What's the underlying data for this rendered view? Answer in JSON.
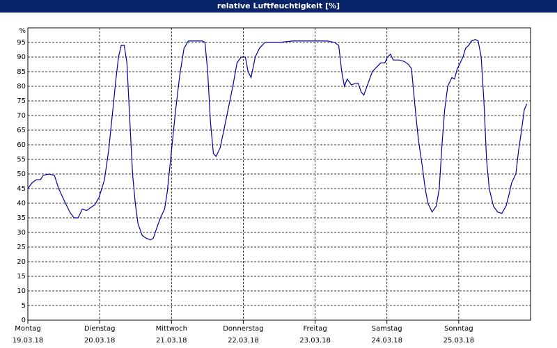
{
  "chart_data": {
    "type": "line",
    "title": "relative Luftfeuchtigkeit [%]",
    "y_unit": "%",
    "xlim": [
      0,
      168
    ],
    "xticks": [
      {
        "value": 0,
        "label": "Montag"
      },
      {
        "value": 24,
        "label": "Dienstag"
      },
      {
        "value": 48,
        "label": "Mittwoch"
      },
      {
        "value": 72,
        "label": "Donnerstag"
      },
      {
        "value": 96,
        "label": "Freitag"
      },
      {
        "value": 120,
        "label": "Samstag"
      },
      {
        "value": 144,
        "label": "Sonntag"
      }
    ],
    "x_dates": [
      "19.03.18",
      "20.03.18",
      "21.03.18",
      "22.03.18",
      "23.03.18",
      "24.03.18",
      "25.03.18"
    ],
    "ylim": [
      0,
      100
    ],
    "yticks": [
      0,
      5,
      10,
      15,
      20,
      25,
      30,
      35,
      40,
      45,
      50,
      55,
      60,
      65,
      70,
      75,
      80,
      85,
      90,
      95
    ],
    "grid": true,
    "series": [
      {
        "color": "#0000a0",
        "x": [
          0,
          1.4,
          2.8,
          4.2,
          5.1,
          7.0,
          8.9,
          10.3,
          12.1,
          14.0,
          15.4,
          16.8,
          18.2,
          19.6,
          21.0,
          22.4,
          23.8,
          25.6,
          27.0,
          28.4,
          29.4,
          30.3,
          31.2,
          32.2,
          33.1,
          34.0,
          35.0,
          35.9,
          36.8,
          38.2,
          39.6,
          41.0,
          41.9,
          42.9,
          44.3,
          45.7,
          46.6,
          48.0,
          49.4,
          50.8,
          52.2,
          53.6,
          55.0,
          56.4,
          58.3,
          59.2,
          60.1,
          61.0,
          62.0,
          62.9,
          64.3,
          65.7,
          67.1,
          68.5,
          69.9,
          71.3,
          72.7,
          73.6,
          74.6,
          76.0,
          77.4,
          79.2,
          80.6,
          83.9,
          88.5,
          93.2,
          97.9,
          100.2,
          102.5,
          103.9,
          104.9,
          105.8,
          106.7,
          108.1,
          109.5,
          110.4,
          111.4,
          112.3,
          113.7,
          115.1,
          116.5,
          117.9,
          119.3,
          120.2,
          121.2,
          122.1,
          124.0,
          125.8,
          127.2,
          128.2,
          129.5,
          130.5,
          131.9,
          132.8,
          133.7,
          135.1,
          136.5,
          137.5,
          138.4,
          139.3,
          140.3,
          141.7,
          142.6,
          143.5,
          144.5,
          145.4,
          146.3,
          147.3,
          148.2,
          149.6,
          150.5,
          151.5,
          152.4,
          153.3,
          154.2,
          155.6,
          157.0,
          158.4,
          159.8,
          160.8,
          161.7,
          163.1,
          164.0,
          165.0,
          165.9,
          166.8
        ],
        "values": [
          45,
          47,
          48,
          48,
          49.5,
          50,
          49.5,
          45,
          41,
          37,
          35,
          35,
          38,
          37.5,
          38.5,
          39.5,
          42,
          48,
          58,
          72,
          82,
          90,
          94,
          94,
          88,
          70,
          50,
          40,
          33,
          29,
          28,
          27.5,
          28,
          31,
          35,
          38,
          44,
          58,
          72,
          84,
          93,
          95.5,
          95.5,
          95.5,
          95.5,
          95,
          85,
          68,
          57,
          56,
          59,
          66,
          73,
          80,
          88,
          90,
          90,
          85,
          83,
          90,
          93,
          95,
          95,
          95,
          95.5,
          95.5,
          95.5,
          95.5,
          95,
          94,
          85,
          80,
          82.5,
          80.5,
          81,
          81,
          78,
          77,
          81,
          85,
          86.5,
          88,
          88,
          90,
          91,
          89,
          89,
          88.5,
          87.5,
          86,
          72,
          62,
          52,
          45,
          40,
          37,
          39,
          45,
          60,
          72,
          80,
          83,
          82.5,
          86,
          88,
          90,
          93,
          94,
          95.5,
          96,
          95.5,
          90,
          75,
          55,
          45,
          39,
          37,
          36.5,
          39,
          43,
          47,
          50,
          58,
          65,
          72,
          74
        ]
      }
    ]
  }
}
